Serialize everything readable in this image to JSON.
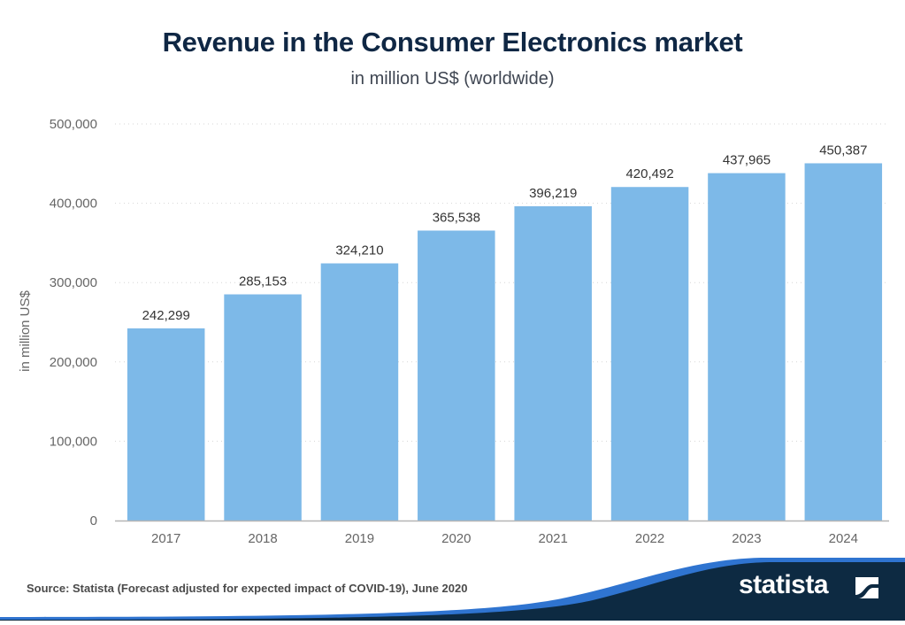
{
  "title": "Revenue in the Consumer Electronics market",
  "subtitle": "in million US$ (worldwide)",
  "source": "Source: Statista (Forecast adjusted for expected impact of COVID-19), June 2020",
  "brand": {
    "name": "statista",
    "icon": "statista-logo-icon"
  },
  "colors": {
    "bar": "#7db9e8",
    "title": "#0f2744",
    "footer_dark": "#0d2a42",
    "footer_accent": "#2f74d0"
  },
  "chart_data": {
    "type": "bar",
    "title": "Revenue in the Consumer Electronics market",
    "subtitle": "in million US$ (worldwide)",
    "xlabel": "",
    "ylabel": "in million US$",
    "categories": [
      "2017",
      "2018",
      "2019",
      "2020",
      "2021",
      "2022",
      "2023",
      "2024"
    ],
    "values": [
      242299,
      285153,
      324210,
      365538,
      396219,
      420492,
      437965,
      450387
    ],
    "value_labels": [
      "242,299",
      "285,153",
      "324,210",
      "365,538",
      "396,219",
      "420,492",
      "437,965",
      "450,387"
    ],
    "ylim": [
      0,
      500000
    ],
    "yticks": [
      0,
      100000,
      200000,
      300000,
      400000,
      500000
    ],
    "ytick_labels": [
      "0",
      "100,000",
      "200,000",
      "300,000",
      "400,000",
      "500,000"
    ],
    "grid": true,
    "legend": "none"
  }
}
